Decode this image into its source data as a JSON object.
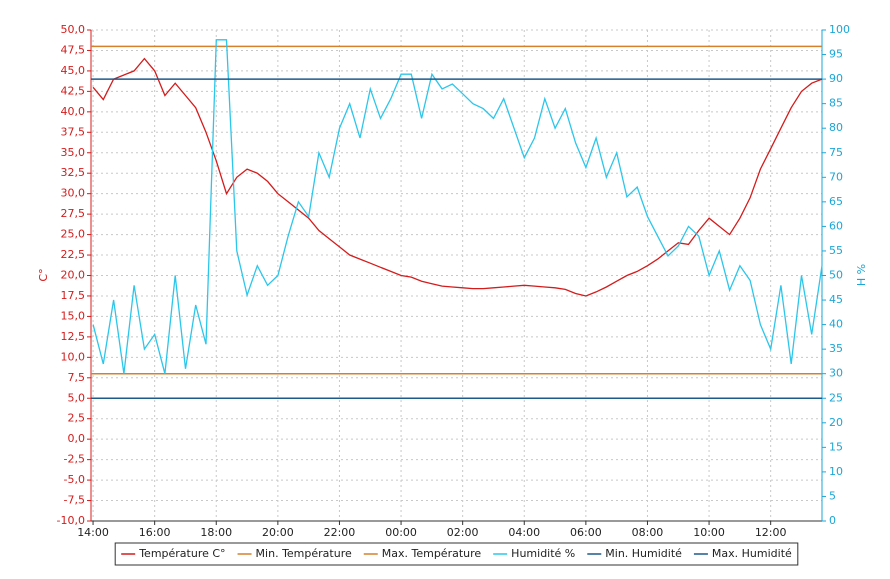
{
  "chart_data": {
    "type": "line",
    "x": [
      "14:00",
      "14:20",
      "14:40",
      "15:00",
      "15:20",
      "15:40",
      "16:00",
      "16:20",
      "16:40",
      "17:00",
      "17:20",
      "17:40",
      "18:00",
      "18:20",
      "18:40",
      "19:00",
      "19:20",
      "19:40",
      "20:00",
      "20:20",
      "20:40",
      "21:00",
      "21:20",
      "21:40",
      "22:00",
      "22:20",
      "22:40",
      "23:00",
      "23:20",
      "23:40",
      "00:00",
      "00:20",
      "00:40",
      "01:00",
      "01:20",
      "01:40",
      "02:00",
      "02:20",
      "02:40",
      "03:00",
      "03:20",
      "03:40",
      "04:00",
      "04:20",
      "04:40",
      "05:00",
      "05:20",
      "05:40",
      "06:00",
      "06:20",
      "06:40",
      "07:00",
      "07:20",
      "07:40",
      "08:00",
      "08:20",
      "08:40",
      "09:00",
      "09:20",
      "09:40",
      "10:00",
      "10:20",
      "10:40",
      "11:00",
      "11:20",
      "11:40",
      "12:00",
      "12:20",
      "12:40",
      "13:00",
      "13:20",
      "13:40"
    ],
    "xlim": [
      "13:56",
      "13:40"
    ],
    "xticks": [
      "14:00",
      "16:00",
      "18:00",
      "20:00",
      "22:00",
      "00:00",
      "02:00",
      "04:00",
      "06:00",
      "08:00",
      "10:00",
      "12:00"
    ],
    "ylim": [
      -10,
      50
    ],
    "yticks": [
      {
        "value": -10,
        "label": "-10,0"
      },
      {
        "value": -7.5,
        "label": "-7,5"
      },
      {
        "value": -5,
        "label": "-5,0"
      },
      {
        "value": -2.5,
        "label": "-2,5"
      },
      {
        "value": 0,
        "label": "0,0"
      },
      {
        "value": 2.5,
        "label": "2,5"
      },
      {
        "value": 5,
        "label": "5,0"
      },
      {
        "value": 7.5,
        "label": "7,5"
      },
      {
        "value": 10,
        "label": "10,0"
      },
      {
        "value": 12.5,
        "label": "12,5"
      },
      {
        "value": 15,
        "label": "15,0"
      },
      {
        "value": 17.5,
        "label": "17,5"
      },
      {
        "value": 20,
        "label": "20,0"
      },
      {
        "value": 22.5,
        "label": "22,5"
      },
      {
        "value": 25,
        "label": "25,0"
      },
      {
        "value": 27.5,
        "label": "27,5"
      },
      {
        "value": 30,
        "label": "30,0"
      },
      {
        "value": 32.5,
        "label": "32,5"
      },
      {
        "value": 35,
        "label": "35,0"
      },
      {
        "value": 37.5,
        "label": "37,5"
      },
      {
        "value": 40,
        "label": "40,0"
      },
      {
        "value": 42.5,
        "label": "42,5"
      },
      {
        "value": 45,
        "label": "45,0"
      },
      {
        "value": 47.5,
        "label": "47,5"
      },
      {
        "value": 50,
        "label": "50,0"
      }
    ],
    "y2lim": [
      0,
      100
    ],
    "y2ticks": [
      0,
      5,
      10,
      15,
      20,
      25,
      30,
      35,
      40,
      45,
      50,
      55,
      60,
      65,
      70,
      75,
      80,
      85,
      90,
      95,
      100
    ],
    "ylabel": "C°",
    "y2label": "H %",
    "grid": true,
    "legend": "bottom",
    "series": [
      {
        "name": "Température C°",
        "color": "#d41c1c",
        "values": [
          43,
          41.5,
          44,
          44.5,
          45,
          46.5,
          45,
          42,
          43.5,
          42,
          40.5,
          37.5,
          34,
          30,
          32,
          33,
          32.5,
          31.5,
          30,
          29,
          28,
          27,
          25.5,
          24.5,
          23.5,
          22.5,
          22,
          21.5,
          21,
          20.5,
          20,
          19.8,
          19.3,
          19,
          18.7,
          18.6,
          18.5,
          18.4,
          18.4,
          18.5,
          18.6,
          18.7,
          18.8,
          18.7,
          18.6,
          18.5,
          18.3,
          17.8,
          17.5,
          18,
          18.6,
          19.3,
          20,
          20.5,
          21.2,
          22,
          23,
          24,
          23.8,
          25.5,
          27,
          26,
          25,
          27,
          29.5,
          33,
          35.5,
          38,
          40.5,
          42.5,
          43.5,
          44
        ]
      },
      {
        "name": "Min. Température",
        "color": "#d6802c",
        "value": 8
      },
      {
        "name": "Max. Température",
        "color": "#d6802c",
        "value": 48
      },
      {
        "name": "Humidité %",
        "color": "#2cc6ea",
        "axis": "y2",
        "values": [
          40,
          32,
          45,
          30,
          48,
          35,
          38,
          30,
          50,
          31,
          44,
          36,
          98,
          98,
          55,
          46,
          52,
          48,
          50,
          58,
          65,
          62,
          75,
          70,
          80,
          85,
          78,
          88,
          82,
          86,
          91,
          91,
          82,
          91,
          88,
          89,
          87,
          85,
          84,
          82,
          86,
          80,
          74,
          78,
          86,
          80,
          84,
          77,
          72,
          78,
          70,
          75,
          66,
          68,
          62,
          58,
          54,
          56,
          60,
          58,
          50,
          55,
          47,
          52,
          49,
          40,
          35,
          48,
          32,
          50,
          38,
          52
        ]
      },
      {
        "name": "Min. Humidité",
        "color": "#1c5a8a",
        "axis": "y2",
        "value": 25
      },
      {
        "name": "Max. Humidité",
        "color": "#1c5a8a",
        "axis": "y2",
        "value": 90
      }
    ]
  }
}
